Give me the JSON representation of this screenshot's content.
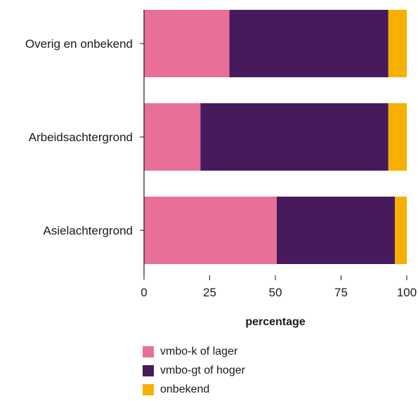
{
  "chart_data": {
    "type": "bar",
    "orientation": "horizontal",
    "stacked": true,
    "categories": [
      "Overig en onbekend",
      "Arbeidsachtergrond",
      "Asielachtergrond"
    ],
    "series": [
      {
        "name": "vmbo-k of lager",
        "values": [
          32.5,
          21.5,
          50.5
        ],
        "color": "#e86f98"
      },
      {
        "name": "vmbo-gt of hoger",
        "values": [
          60.5,
          71.5,
          45
        ],
        "color": "#471a5c"
      },
      {
        "name": "onbekend",
        "values": [
          7,
          7,
          4.5
        ],
        "color": "#f6b000"
      }
    ],
    "xlabel": "percentage",
    "ylabel": "",
    "xlim": [
      0,
      100
    ],
    "xticks": [
      "0",
      "25",
      "50",
      "75",
      "100"
    ],
    "grid": false,
    "legend_position": "bottom"
  }
}
